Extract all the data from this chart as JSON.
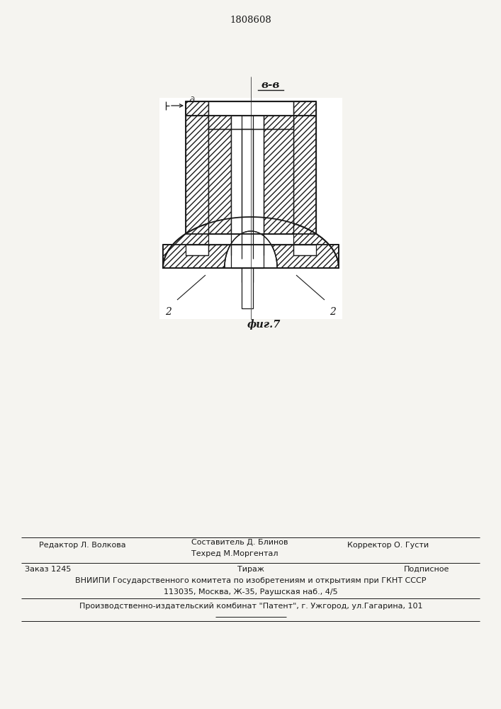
{
  "patent_number": "1808608",
  "fig_label": "фиг.7",
  "section_label": "в-в",
  "dim_label": "д",
  "label_2_left": "2",
  "label_2_right": "2",
  "editor_line": "Редактор Л. Волкова",
  "composer_line1": "Составитель Д. Блинов",
  "composer_line2": "Техред М.Моргентал",
  "corrector_line": "Корректор О. Густи",
  "order_line": "Заказ 1245",
  "circulation_line": "Тираж",
  "subscription_line": "Подписное",
  "vniiipi_line1": "ВНИИПИ Государственного комитета по изобретениям и открытиям при ГКНТ СССР",
  "vniiipi_line2": "113035, Москва, Ж-35, Раушская наб., 4/5",
  "proizv_line": "Производственно-издательский комбинат \"Патент\", г. Ужгород, ул.Гагарина, 101",
  "bg_color": "#f5f4f0",
  "line_color": "#1a1a1a"
}
